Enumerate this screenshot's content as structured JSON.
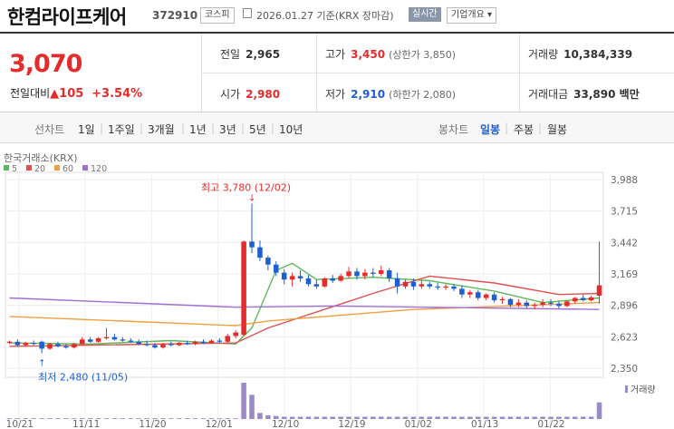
{
  "header": {
    "name": "한컴라이프케어",
    "code": "372910",
    "market": "코스피",
    "date_text": "2026.01.27 기준(KRX 장마감)",
    "realtime_label": "실시간",
    "overview_label": "기업개요 ▾"
  },
  "quote": {
    "price": "3,070",
    "change_label": "전일대비",
    "change_amount": "▲105",
    "change_pct": "+3.54%",
    "prev_label": "전일",
    "prev_value": "2,965",
    "high_label": "고가",
    "high_value": "3,450",
    "high_limit": "(상한가 3,850)",
    "volume_label": "거래량",
    "volume_value": "10,384,339",
    "open_label": "시가",
    "open_value": "2,980",
    "low_label": "저가",
    "low_value": "2,910",
    "low_limit": "(하한가 2,080)",
    "amount_label": "거래대금",
    "amount_value": "33,890 백만"
  },
  "tabs": {
    "line_label": "선차트",
    "periods": [
      "1일",
      "1주일",
      "3개월",
      "1년",
      "3년",
      "5년",
      "10년"
    ],
    "candle_label": "봉차트",
    "candle_periods": [
      "일봉",
      "주봉",
      "월봉"
    ],
    "active_candle": "일봉"
  },
  "colors": {
    "up": "#e52b2b",
    "down": "#1f5fd2",
    "ma5": "#5cb85c",
    "ma20": "#e05050",
    "ma60": "#f0a040",
    "ma120": "#a070d0"
  },
  "chart_data": {
    "type": "candlestick",
    "source": "한국거래소(KRX)",
    "legend": [
      {
        "name": "5",
        "color": "#5cb85c"
      },
      {
        "name": "20",
        "color": "#e05050"
      },
      {
        "name": "60",
        "color": "#f0a040"
      },
      {
        "name": "120",
        "color": "#a070d0"
      }
    ],
    "y_ticks": [
      "3,988",
      "3,715",
      "3,442",
      "3,169",
      "2,896",
      "2,623",
      "2,350"
    ],
    "ylim": [
      2350,
      3988
    ],
    "x_ticks": [
      "10/21",
      "11/11",
      "11/20",
      "12/01",
      "12/10",
      "12/19",
      "01/02",
      "01/13",
      "01/22"
    ],
    "high_annotation": "최고 3,780 (12/02)",
    "low_annotation": "최저 2,480 (11/05)",
    "volume_label": "거래량",
    "candles": [
      [
        2570,
        2590,
        2560,
        2580
      ],
      [
        2580,
        2600,
        2540,
        2550
      ],
      [
        2550,
        2580,
        2540,
        2570
      ],
      [
        2570,
        2590,
        2550,
        2560
      ],
      [
        2580,
        2590,
        2480,
        2520
      ],
      [
        2520,
        2570,
        2510,
        2560
      ],
      [
        2560,
        2580,
        2530,
        2540
      ],
      [
        2540,
        2560,
        2520,
        2530
      ],
      [
        2530,
        2570,
        2520,
        2560
      ],
      [
        2560,
        2620,
        2550,
        2600
      ],
      [
        2600,
        2620,
        2570,
        2580
      ],
      [
        2580,
        2620,
        2570,
        2610
      ],
      [
        2610,
        2700,
        2600,
        2620
      ],
      [
        2620,
        2650,
        2590,
        2600
      ],
      [
        2600,
        2620,
        2580,
        2590
      ],
      [
        2590,
        2610,
        2570,
        2580
      ],
      [
        2580,
        2600,
        2550,
        2560
      ],
      [
        2560,
        2590,
        2540,
        2550
      ],
      [
        2550,
        2570,
        2520,
        2530
      ],
      [
        2530,
        2570,
        2520,
        2560
      ],
      [
        2560,
        2580,
        2540,
        2550
      ],
      [
        2550,
        2580,
        2540,
        2570
      ],
      [
        2570,
        2590,
        2550,
        2560
      ],
      [
        2560,
        2590,
        2550,
        2580
      ],
      [
        2580,
        2600,
        2560,
        2570
      ],
      [
        2570,
        2600,
        2560,
        2590
      ],
      [
        2590,
        2610,
        2570,
        2580
      ],
      [
        2580,
        2650,
        2570,
        2630
      ],
      [
        2630,
        2680,
        2610,
        2660
      ],
      [
        2640,
        3460,
        2630,
        3450
      ],
      [
        3450,
        3780,
        3350,
        3400
      ],
      [
        3400,
        3460,
        3280,
        3310
      ],
      [
        3310,
        3330,
        3200,
        3250
      ],
      [
        3250,
        3280,
        3150,
        3180
      ],
      [
        3180,
        3210,
        3080,
        3120
      ],
      [
        3120,
        3180,
        3060,
        3150
      ],
      [
        3150,
        3200,
        3100,
        3130
      ],
      [
        3130,
        3160,
        3060,
        3080
      ],
      [
        3080,
        3120,
        3040,
        3060
      ],
      [
        3060,
        3140,
        3050,
        3130
      ],
      [
        3130,
        3160,
        3090,
        3110
      ],
      [
        3110,
        3170,
        3100,
        3150
      ],
      [
        3150,
        3230,
        3130,
        3190
      ],
      [
        3190,
        3220,
        3120,
        3150
      ],
      [
        3150,
        3210,
        3120,
        3180
      ],
      [
        3180,
        3220,
        3140,
        3170
      ],
      [
        3170,
        3240,
        3150,
        3200
      ],
      [
        3200,
        3220,
        3100,
        3130
      ],
      [
        3130,
        3180,
        3000,
        3060
      ],
      [
        3060,
        3120,
        3040,
        3100
      ],
      [
        3100,
        3130,
        3030,
        3060
      ],
      [
        3060,
        3110,
        3040,
        3080
      ],
      [
        3080,
        3100,
        3040,
        3060
      ],
      [
        3060,
        3090,
        3030,
        3050
      ],
      [
        3050,
        3080,
        3030,
        3060
      ],
      [
        3060,
        3080,
        3020,
        3040
      ],
      [
        3040,
        3070,
        2960,
        2990
      ],
      [
        2990,
        3030,
        2960,
        3010
      ],
      [
        3010,
        3030,
        2940,
        2960
      ],
      [
        2960,
        3000,
        2940,
        2990
      ],
      [
        2990,
        3010,
        2920,
        2940
      ],
      [
        2940,
        2970,
        2910,
        2950
      ],
      [
        2950,
        2960,
        2880,
        2900
      ],
      [
        2900,
        2950,
        2880,
        2920
      ],
      [
        2920,
        2940,
        2870,
        2890
      ],
      [
        2890,
        2920,
        2860,
        2900
      ],
      [
        2900,
        2950,
        2880,
        2920
      ],
      [
        2920,
        2950,
        2890,
        2910
      ],
      [
        2910,
        2930,
        2870,
        2890
      ],
      [
        2890,
        2940,
        2880,
        2930
      ],
      [
        2930,
        2970,
        2910,
        2960
      ],
      [
        2960,
        2990,
        2930,
        2940
      ],
      [
        2940,
        2980,
        2930,
        2965
      ],
      [
        2980,
        3450,
        2910,
        3070
      ]
    ],
    "ma": {
      "5": [
        [
          0,
          2570
        ],
        [
          10,
          2560
        ],
        [
          20,
          2590
        ],
        [
          28,
          2560
        ],
        [
          30,
          2700
        ],
        [
          33,
          3200
        ],
        [
          35,
          3260
        ],
        [
          38,
          3120
        ],
        [
          45,
          3140
        ],
        [
          52,
          3110
        ],
        [
          60,
          3020
        ],
        [
          66,
          2920
        ],
        [
          73,
          2960
        ]
      ],
      "20": [
        [
          0,
          2540
        ],
        [
          28,
          2570
        ],
        [
          32,
          2700
        ],
        [
          45,
          3000
        ],
        [
          52,
          3150
        ],
        [
          60,
          3090
        ],
        [
          68,
          2990
        ],
        [
          73,
          3000
        ]
      ],
      "60": [
        [
          0,
          2800
        ],
        [
          28,
          2720
        ],
        [
          32,
          2760
        ],
        [
          50,
          2860
        ],
        [
          73,
          2920
        ]
      ],
      "120": [
        [
          0,
          2960
        ],
        [
          28,
          2880
        ],
        [
          40,
          2890
        ],
        [
          73,
          2860
        ]
      ]
    },
    "volume": [
      1,
      1,
      1,
      1,
      1,
      1,
      1,
      1,
      1,
      1,
      1,
      1,
      1,
      1,
      1,
      1,
      1,
      1,
      1,
      1,
      1,
      1,
      1,
      1,
      1,
      1,
      1,
      1,
      1,
      48,
      32,
      8,
      5,
      4,
      3,
      3,
      3,
      3,
      3,
      3,
      3,
      3,
      3,
      3,
      3,
      3,
      3,
      3,
      3,
      3,
      3,
      3,
      3,
      3,
      3,
      3,
      3,
      3,
      3,
      3,
      3,
      3,
      3,
      3,
      3,
      3,
      3,
      3,
      3,
      3,
      3,
      3,
      3,
      22
    ]
  }
}
